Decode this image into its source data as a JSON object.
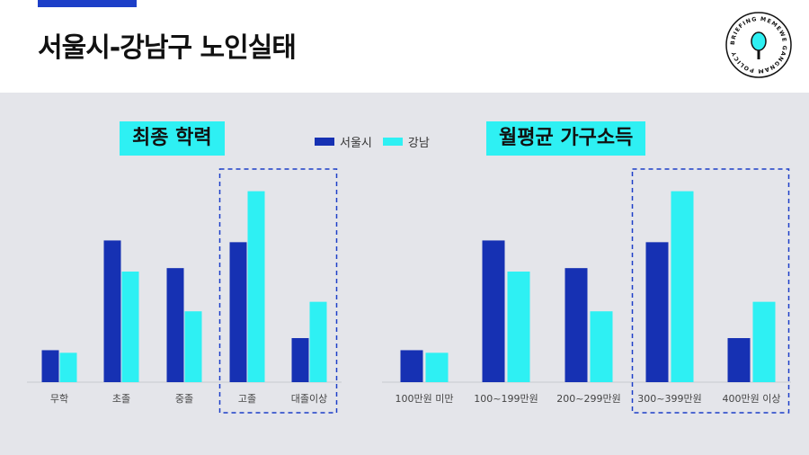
{
  "page": {
    "title": "서울시-강남구 노인실태",
    "logo_text": "BRIEFING MEMEWE GANGNAM POLICY"
  },
  "colors": {
    "seoul": "#1631b3",
    "gangnam": "#2ef0f3",
    "accent": "#1d3fc8",
    "highlight_box": "#1d3fc8"
  },
  "legend": {
    "seoul": "서울시",
    "gangnam": "강남"
  },
  "chart_data": [
    {
      "type": "bar",
      "title": "최종 학력",
      "categories": [
        "무학",
        "초졸",
        "중졸",
        "고졸",
        "대졸이상"
      ],
      "series": [
        {
          "name": "서울시",
          "values": [
            37,
            164,
            132,
            162,
            51
          ]
        },
        {
          "name": "강남",
          "values": [
            34,
            128,
            82,
            221,
            93
          ]
        }
      ],
      "ylim": [
        0,
        230
      ],
      "highlight": [
        "고졸",
        "대졸이상"
      ]
    },
    {
      "type": "bar",
      "title": "월평균 가구소득",
      "categories": [
        "100만원 미만",
        "100~199만원",
        "200~299만원",
        "300~399만원",
        "400만원 이상"
      ],
      "series": [
        {
          "name": "서울시",
          "values": [
            37,
            164,
            132,
            162,
            51
          ]
        },
        {
          "name": "강남",
          "values": [
            34,
            128,
            82,
            221,
            93
          ]
        }
      ],
      "ylim": [
        0,
        230
      ],
      "highlight": [
        "300~399만원",
        "400만원 이상"
      ]
    }
  ]
}
